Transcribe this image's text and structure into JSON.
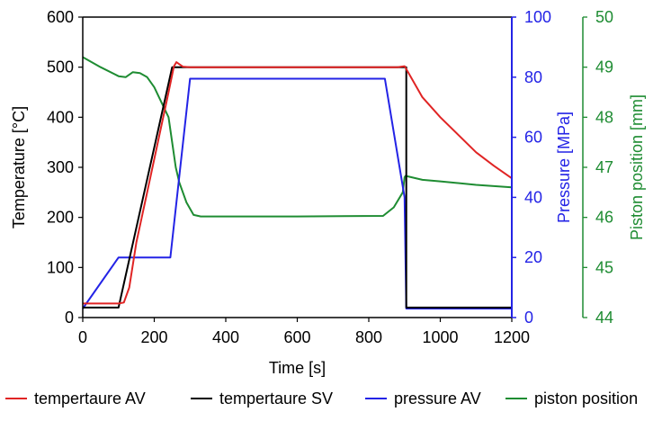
{
  "chart_data": {
    "type": "line",
    "xlabel": "Time [s]",
    "xlim": [
      0,
      1200
    ],
    "x_ticks": [
      "0",
      "200",
      "400",
      "600",
      "800",
      "1000",
      "1200"
    ],
    "axes": {
      "left": {
        "label": "Temperature [°C]",
        "ylim": [
          0,
          600
        ],
        "ticks": [
          "0",
          "100",
          "200",
          "300",
          "400",
          "500",
          "600"
        ],
        "color": "#000000"
      },
      "right1": {
        "label": "Pressure [MPa]",
        "ylim": [
          0,
          100
        ],
        "ticks": [
          "0",
          "20",
          "40",
          "60",
          "80",
          "100"
        ],
        "color": "#2323e6"
      },
      "right2": {
        "label": "Piston position [mm]",
        "ylim": [
          44,
          50
        ],
        "ticks": [
          "44",
          "45",
          "46",
          "47",
          "48",
          "49",
          "50"
        ],
        "color": "#1e8c32"
      }
    },
    "grid": false,
    "legend_position": "bottom",
    "series": [
      {
        "name": "tempertaure AV",
        "axis": "left",
        "color": "#e02424",
        "points": [
          [
            0,
            28
          ],
          [
            100,
            28
          ],
          [
            115,
            30
          ],
          [
            130,
            60
          ],
          [
            150,
            150
          ],
          [
            180,
            250
          ],
          [
            210,
            350
          ],
          [
            240,
            450
          ],
          [
            255,
            502
          ],
          [
            262,
            510
          ],
          [
            270,
            506
          ],
          [
            280,
            501
          ],
          [
            300,
            500
          ],
          [
            600,
            500
          ],
          [
            880,
            500
          ],
          [
            900,
            502
          ],
          [
            910,
            490
          ],
          [
            950,
            440
          ],
          [
            1000,
            400
          ],
          [
            1050,
            365
          ],
          [
            1100,
            330
          ],
          [
            1150,
            303
          ],
          [
            1200,
            278
          ]
        ]
      },
      {
        "name": "tempertaure SV",
        "axis": "left",
        "color": "#000000",
        "points": [
          [
            0,
            20
          ],
          [
            100,
            20
          ],
          [
            250,
            500
          ],
          [
            905,
            500
          ],
          [
            905,
            20
          ],
          [
            1200,
            20
          ]
        ]
      },
      {
        "name": "pressure AV",
        "axis": "right1",
        "color": "#2323e6",
        "points": [
          [
            0,
            3
          ],
          [
            100,
            20
          ],
          [
            245,
            20
          ],
          [
            300,
            79.5
          ],
          [
            845,
            79.5
          ],
          [
            900,
            40
          ],
          [
            905,
            3
          ],
          [
            910,
            3
          ],
          [
            1200,
            3
          ]
        ]
      },
      {
        "name": "piston position",
        "axis": "right2",
        "color": "#1e8c32",
        "points": [
          [
            0,
            49.2
          ],
          [
            50,
            49.0
          ],
          [
            100,
            48.82
          ],
          [
            120,
            48.8
          ],
          [
            140,
            48.9
          ],
          [
            160,
            48.88
          ],
          [
            180,
            48.8
          ],
          [
            200,
            48.6
          ],
          [
            220,
            48.3
          ],
          [
            240,
            48.0
          ],
          [
            250,
            47.5
          ],
          [
            260,
            47.0
          ],
          [
            270,
            46.7
          ],
          [
            290,
            46.3
          ],
          [
            310,
            46.05
          ],
          [
            330,
            46.02
          ],
          [
            400,
            46.02
          ],
          [
            600,
            46.02
          ],
          [
            840,
            46.03
          ],
          [
            870,
            46.2
          ],
          [
            895,
            46.5
          ],
          [
            900,
            46.8
          ],
          [
            903,
            46.83
          ],
          [
            950,
            46.75
          ],
          [
            1000,
            46.72
          ],
          [
            1100,
            46.65
          ],
          [
            1200,
            46.6
          ]
        ]
      }
    ]
  }
}
